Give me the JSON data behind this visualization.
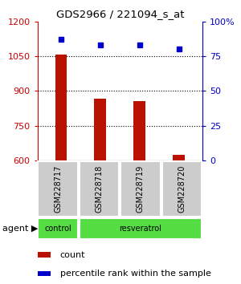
{
  "title": "GDS2966 / 221094_s_at",
  "samples": [
    "GSM228717",
    "GSM228718",
    "GSM228719",
    "GSM228720"
  ],
  "counts": [
    1055,
    865,
    855,
    625
  ],
  "percentiles": [
    87,
    83,
    83,
    80
  ],
  "ylim_left": [
    600,
    1200
  ],
  "ylim_right": [
    0,
    100
  ],
  "yticks_left": [
    600,
    750,
    900,
    1050,
    1200
  ],
  "yticks_right": [
    0,
    25,
    50,
    75,
    100
  ],
  "ytick_labels_right": [
    "0",
    "25",
    "50",
    "75",
    "100%"
  ],
  "bar_color": "#bb1100",
  "marker_color": "#0000cc",
  "grid_color": "#000000",
  "agent_row_color": "#55dd44",
  "sample_row_color": "#cccccc",
  "legend_count_label": "count",
  "legend_pct_label": "percentile rank within the sample",
  "bar_width": 0.3,
  "fig_width": 3.0,
  "fig_height": 3.54,
  "left_tick_color": "#cc0000",
  "right_tick_color": "#0000cc"
}
